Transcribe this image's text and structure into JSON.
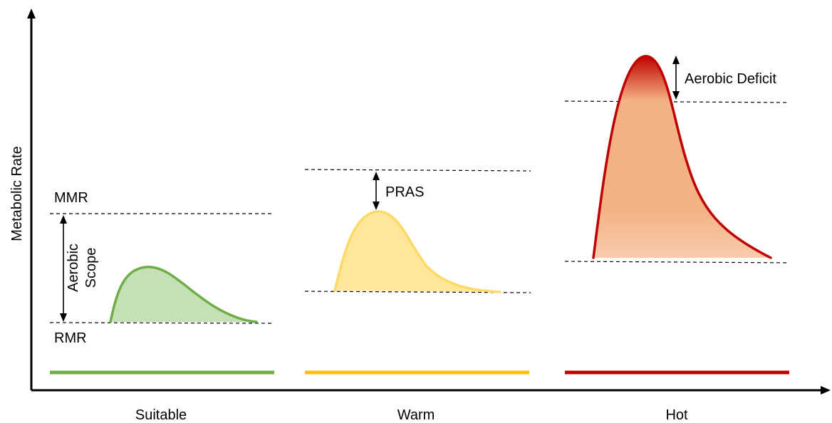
{
  "y_axis_label": "Metabolic Rate",
  "conditions": [
    {
      "name": "Suitable",
      "color": "#70AD47",
      "fill": "#C5E0B4"
    },
    {
      "name": "Warm",
      "color": "#FFC000",
      "fill": "#FFE699"
    },
    {
      "name": "Hot",
      "color": "#C00000",
      "fill": "#F4B183"
    }
  ],
  "labels": {
    "mmr": "MMR",
    "rmr": "RMR",
    "aerobic_scope_line1": "Aerobic",
    "aerobic_scope_line2": "Scope",
    "pras": "PRAS",
    "aerobic_deficit": "Aerobic Deficit"
  }
}
